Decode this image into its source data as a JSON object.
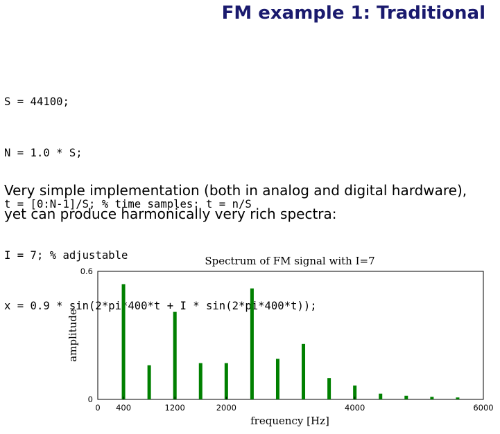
{
  "slide": {
    "title": "FM example 1: Traditional"
  },
  "code": {
    "lines": [
      "S = 44100;",
      "N = 1.0 * S;",
      "t = [0:N-1]/S; % time samples: t = n/S",
      "I = 7; % adjustable",
      "x = 0.9 * sin(2*pi*400*t + I * sin(2*pi*400*t));"
    ]
  },
  "paragraph": {
    "lines": [
      "Very simple implementation (both in analog and digital hardware),",
      "yet can produce harmonically very rich spectra:"
    ]
  },
  "chart_data": {
    "type": "bar",
    "title": "Spectrum of FM signal with I=7",
    "xlabel": "frequency [Hz]",
    "ylabel": "amplitude",
    "xlim": [
      0,
      6000
    ],
    "ylim": [
      0,
      0.6
    ],
    "xticks": [
      0,
      400,
      1200,
      2000,
      4000,
      6000
    ],
    "xtick_labels": [
      "0",
      "400",
      "1200",
      "2000",
      "4000",
      "6000"
    ],
    "yticks": [
      0,
      0.6
    ],
    "ytick_labels": [
      "0",
      "0.6"
    ],
    "grid": false,
    "bar_color": "#008000",
    "x": [
      400,
      800,
      1200,
      1600,
      2000,
      2400,
      2800,
      3200,
      3600,
      4000,
      4400,
      4800,
      5200,
      5600
    ],
    "values": [
      0.54,
      0.16,
      0.41,
      0.17,
      0.17,
      0.52,
      0.19,
      0.26,
      0.1,
      0.065,
      0.027,
      0.017,
      0.012,
      0.009
    ]
  }
}
